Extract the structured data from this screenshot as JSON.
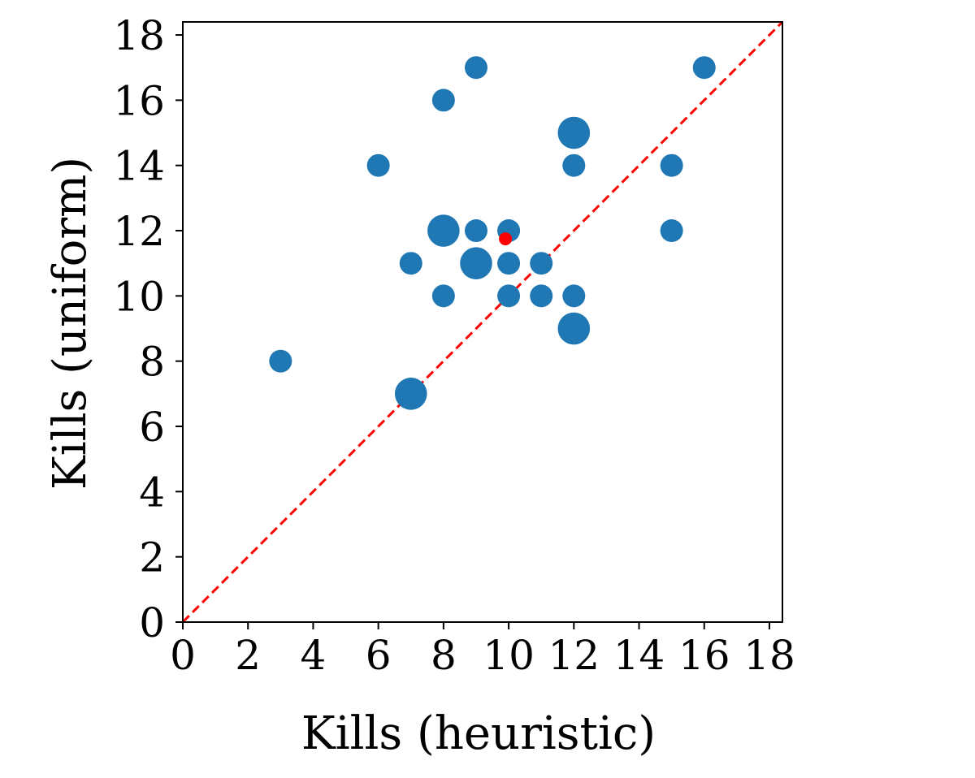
{
  "chart_data": {
    "type": "scatter",
    "title": "",
    "xlabel": "Kills (heuristic)",
    "ylabel": "Kills (uniform)",
    "xlim": [
      0,
      18.4
    ],
    "ylim": [
      0,
      18.4
    ],
    "xticks": [
      0,
      2,
      4,
      6,
      8,
      10,
      12,
      14,
      16,
      18
    ],
    "yticks": [
      0,
      2,
      4,
      6,
      8,
      10,
      12,
      14,
      16,
      18
    ],
    "grid": false,
    "series": [
      {
        "color": "#1f77b4",
        "points": [
          {
            "x": 3,
            "y": 8,
            "count": 1
          },
          {
            "x": 6,
            "y": 14,
            "count": 1
          },
          {
            "x": 7,
            "y": 7,
            "count": 2
          },
          {
            "x": 7,
            "y": 11,
            "count": 1
          },
          {
            "x": 8,
            "y": 10,
            "count": 1
          },
          {
            "x": 8,
            "y": 12,
            "count": 2
          },
          {
            "x": 8,
            "y": 16,
            "count": 1
          },
          {
            "x": 9,
            "y": 11,
            "count": 2
          },
          {
            "x": 9,
            "y": 12,
            "count": 1
          },
          {
            "x": 9,
            "y": 17,
            "count": 1
          },
          {
            "x": 10,
            "y": 10,
            "count": 1
          },
          {
            "x": 10,
            "y": 11,
            "count": 1
          },
          {
            "x": 10,
            "y": 12,
            "count": 1
          },
          {
            "x": 11,
            "y": 10,
            "count": 1
          },
          {
            "x": 11,
            "y": 11,
            "count": 1
          },
          {
            "x": 12,
            "y": 9,
            "count": 2
          },
          {
            "x": 12,
            "y": 10,
            "count": 1
          },
          {
            "x": 12,
            "y": 14,
            "count": 1
          },
          {
            "x": 12,
            "y": 15,
            "count": 2
          },
          {
            "x": 15,
            "y": 12,
            "count": 1
          },
          {
            "x": 15,
            "y": 14,
            "count": 1
          },
          {
            "x": 16,
            "y": 17,
            "count": 1
          }
        ]
      }
    ],
    "mean_point": {
      "x": 9.9,
      "y": 11.75,
      "color": "#ff0000"
    },
    "reference_line": {
      "from": [
        0,
        0
      ],
      "to": [
        18.4,
        18.4
      ],
      "style": "dashed",
      "color": "#ff0000"
    }
  }
}
